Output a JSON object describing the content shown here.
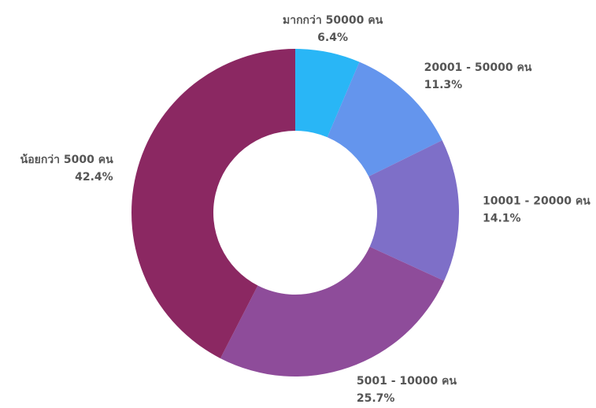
{
  "chart_data": {
    "type": "donut",
    "categories": [
      "มากกว่า 50000 คน",
      "20001 - 50000 คน",
      "10001 - 20000 คน",
      "5001 - 10000 คน",
      "น้อยกว่า 5000 คน"
    ],
    "values": [
      6.4,
      11.3,
      14.1,
      25.7,
      42.4
    ],
    "value_labels": [
      "6.4%",
      "11.3%",
      "14.1%",
      "25.7%",
      "42.4%"
    ],
    "colors": [
      "#29b6f6",
      "#6495ed",
      "#7e6fc8",
      "#8e4c9a",
      "#8b2862"
    ]
  }
}
